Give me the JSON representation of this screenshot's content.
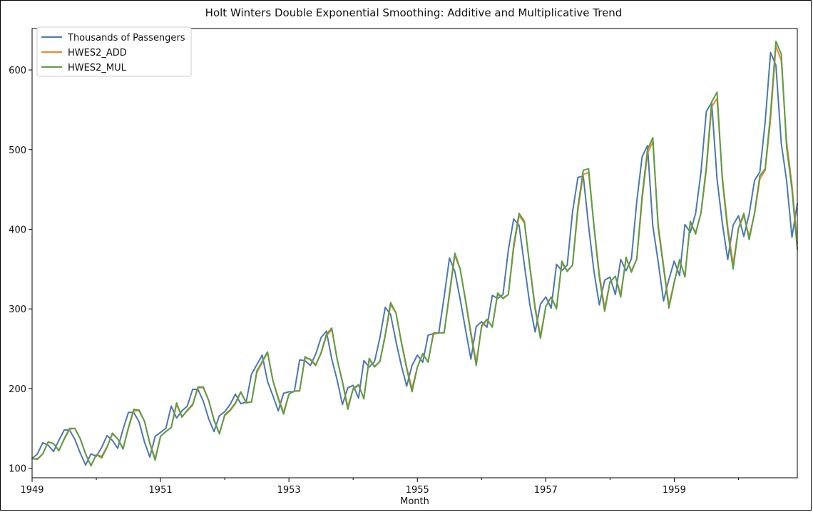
{
  "chart_data": {
    "type": "line",
    "title": "Holt Winters Double Exponential Smoothing: Additive and Multiplicative Trend",
    "xlabel": "Month",
    "ylabel": "",
    "x_start": "1949-01",
    "x_end": "1960-12",
    "xlim": [
      "1949-01",
      "1960-12"
    ],
    "ylim": [
      88,
      652
    ],
    "yticks": [
      100,
      200,
      300,
      400,
      500,
      600
    ],
    "xticks": [
      {
        "label": "1949",
        "date": "1949-01"
      },
      {
        "label": "1951",
        "date": "1951-01"
      },
      {
        "label": "1953",
        "date": "1953-01"
      },
      {
        "label": "1955",
        "date": "1955-01"
      },
      {
        "label": "1957",
        "date": "1957-01"
      },
      {
        "label": "1959",
        "date": "1959-01"
      }
    ],
    "grid": false,
    "legend_position": "top-left",
    "series": [
      {
        "name": "Thousands of Passengers",
        "color": "#4c78b0",
        "values": [
          112,
          118,
          132,
          129,
          121,
          135,
          148,
          148,
          136,
          119,
          104,
          118,
          115,
          126,
          141,
          135,
          125,
          149,
          170,
          170,
          158,
          133,
          114,
          140,
          145,
          150,
          178,
          163,
          172,
          178,
          199,
          199,
          184,
          162,
          146,
          166,
          171,
          180,
          193,
          181,
          183,
          218,
          230,
          242,
          209,
          191,
          172,
          194,
          196,
          196,
          236,
          235,
          229,
          243,
          264,
          272,
          237,
          211,
          180,
          201,
          204,
          188,
          235,
          227,
          234,
          264,
          302,
          293,
          259,
          229,
          203,
          229,
          242,
          233,
          267,
          269,
          270,
          315,
          364,
          347,
          312,
          274,
          237,
          278,
          284,
          277,
          317,
          313,
          318,
          374,
          413,
          405,
          355,
          306,
          271,
          306,
          315,
          301,
          356,
          348,
          355,
          422,
          465,
          467,
          404,
          347,
          305,
          336,
          340,
          318,
          362,
          348,
          363,
          435,
          491,
          505,
          404,
          359,
          310,
          337,
          360,
          342,
          406,
          396,
          420,
          472,
          548,
          559,
          463,
          407,
          362,
          405,
          417,
          391,
          419,
          461,
          472,
          535,
          622,
          606,
          508,
          461,
          390,
          432
        ]
      },
      {
        "name": "HWES2_ADD",
        "color": "#ef8636",
        "values": [
          112,
          112,
          118,
          133,
          131,
          122,
          136,
          149,
          150,
          137,
          118,
          103,
          117,
          115,
          127,
          143,
          137,
          125,
          150,
          172,
          172,
          159,
          132,
          112,
          140,
          146,
          151,
          180,
          165,
          172,
          179,
          201,
          201,
          185,
          161,
          144,
          166,
          172,
          181,
          195,
          183,
          183,
          220,
          233,
          245,
          210,
          189,
          170,
          193,
          197,
          197,
          238,
          237,
          230,
          244,
          266,
          274,
          237,
          209,
          177,
          199,
          204,
          188,
          236,
          228,
          234,
          266,
          305,
          295,
          259,
          227,
          200,
          227,
          243,
          234,
          268,
          270,
          270,
          317,
          367,
          350,
          312,
          271,
          233,
          277,
          286,
          278,
          318,
          314,
          318,
          376,
          417,
          408,
          355,
          303,
          266,
          303,
          315,
          301,
          357,
          348,
          355,
          424,
          469,
          471,
          405,
          344,
          301,
          334,
          341,
          318,
          363,
          348,
          362,
          437,
          495,
          510,
          406,
          355,
          305,
          334,
          360,
          342,
          408,
          396,
          420,
          474,
          554,
          564,
          465,
          403,
          356,
          401,
          417,
          391,
          419,
          463,
          474,
          538,
          630,
          612,
          510,
          456,
          382
        ]
      },
      {
        "name": "HWES2_MUL",
        "color": "#5b9e48",
        "values": [
          112,
          111,
          118,
          133,
          131,
          122,
          137,
          150,
          150,
          137,
          118,
          103,
          117,
          113,
          126,
          144,
          137,
          124,
          151,
          174,
          173,
          159,
          131,
          110,
          140,
          146,
          151,
          182,
          164,
          173,
          180,
          202,
          202,
          185,
          160,
          143,
          167,
          173,
          182,
          196,
          182,
          183,
          222,
          234,
          246,
          210,
          187,
          168,
          193,
          197,
          197,
          240,
          236,
          229,
          245,
          268,
          276,
          237,
          208,
          174,
          200,
          205,
          187,
          238,
          227,
          234,
          268,
          308,
          295,
          258,
          225,
          196,
          227,
          244,
          233,
          270,
          270,
          270,
          320,
          370,
          350,
          310,
          268,
          229,
          279,
          287,
          277,
          320,
          313,
          318,
          380,
          420,
          410,
          353,
          300,
          263,
          303,
          315,
          300,
          360,
          347,
          355,
          428,
          474,
          476,
          403,
          340,
          297,
          334,
          341,
          315,
          365,
          346,
          363,
          442,
          500,
          515,
          402,
          352,
          301,
          333,
          362,
          340,
          410,
          394,
          421,
          478,
          560,
          572,
          461,
          398,
          350,
          401,
          420,
          387,
          420,
          467,
          476,
          545,
          636,
          620,
          503,
          450,
          375
        ]
      }
    ]
  }
}
